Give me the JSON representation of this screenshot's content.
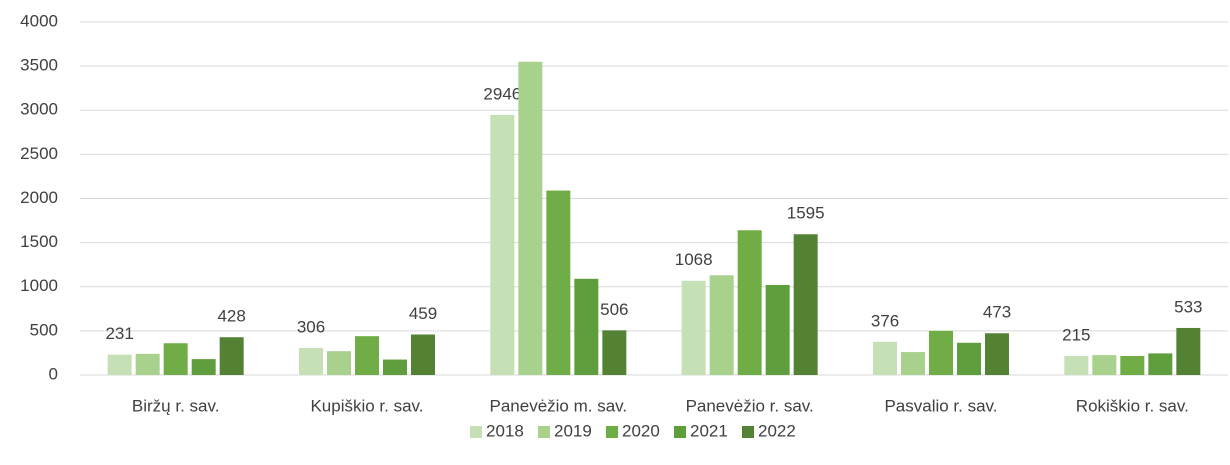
{
  "chart_data": {
    "type": "bar",
    "categories": [
      "Biržų r. sav.",
      "Kupiškio r. sav.",
      "Panevėžio m. sav.",
      "Panevėžio r. sav.",
      "Pasvalio r. sav.",
      "Rokiškio r. sav."
    ],
    "series": [
      {
        "name": "2018",
        "color": "#c5e0b4",
        "show_labels": true,
        "values": [
          231,
          306,
          2946,
          1068,
          376,
          215
        ]
      },
      {
        "name": "2019",
        "color": "#a9d18e",
        "show_labels": false,
        "values": [
          240,
          270,
          3550,
          1130,
          260,
          225
        ]
      },
      {
        "name": "2020",
        "color": "#70ad47",
        "show_labels": false,
        "values": [
          360,
          440,
          2090,
          1640,
          500,
          215
        ]
      },
      {
        "name": "2021",
        "color": "#5f9e3c",
        "show_labels": false,
        "values": [
          180,
          175,
          1090,
          1020,
          365,
          245
        ]
      },
      {
        "name": "2022",
        "color": "#548235",
        "show_labels": true,
        "values": [
          428,
          459,
          506,
          1595,
          473,
          533
        ]
      }
    ],
    "ylim": [
      0,
      4000
    ],
    "yticks": [
      0,
      500,
      1000,
      1500,
      2000,
      2500,
      3000,
      3500,
      4000
    ],
    "grid": true,
    "legend": "bottom"
  }
}
